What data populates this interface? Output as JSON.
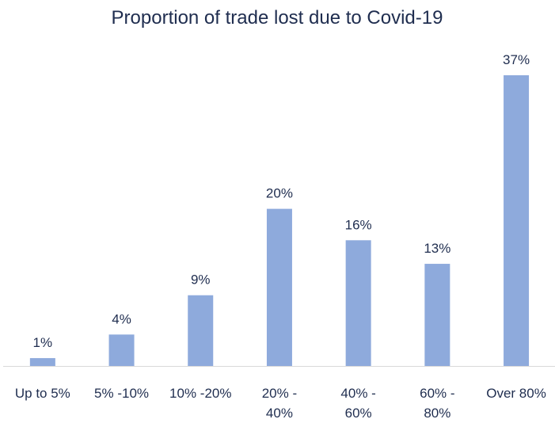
{
  "chart_data": {
    "type": "bar",
    "title": "Proportion of trade lost due to Covid-19",
    "categories": [
      "Up to 5%",
      "5% -10%",
      "10% -20%",
      "20% -\n40%",
      "40% -\n60%",
      "60% -\n80%",
      "Over 80%"
    ],
    "values": [
      1,
      4,
      9,
      20,
      16,
      13,
      37
    ],
    "value_labels": [
      "1%",
      "4%",
      "9%",
      "20%",
      "16%",
      "13%",
      "37%"
    ],
    "color": "#8eaadc"
  }
}
